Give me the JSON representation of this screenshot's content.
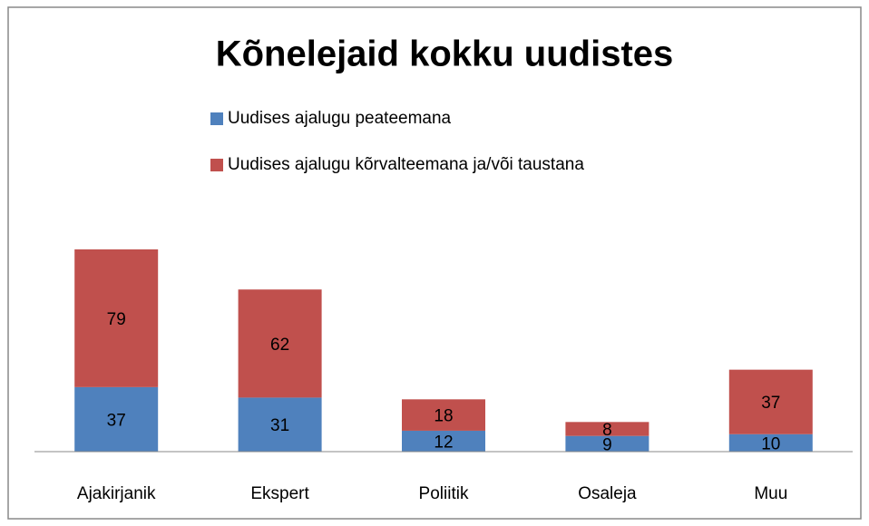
{
  "chart_data": {
    "type": "stacked_bar",
    "title": "Kõnelejaid kokku uudistes",
    "categories": [
      "Ajakirjanik",
      "Ekspert",
      "Poliitik",
      "Osaleja",
      "Muu"
    ],
    "series": [
      {
        "name": "Uudises ajalugu peateemana",
        "color": "#4f81bd",
        "values": [
          37,
          31,
          12,
          9,
          10
        ]
      },
      {
        "name": "Uudises ajalugu kõrvalteemana ja/või taustana",
        "color": "#c0504d",
        "values": [
          79,
          62,
          18,
          8,
          37
        ]
      }
    ],
    "legend": "top"
  }
}
